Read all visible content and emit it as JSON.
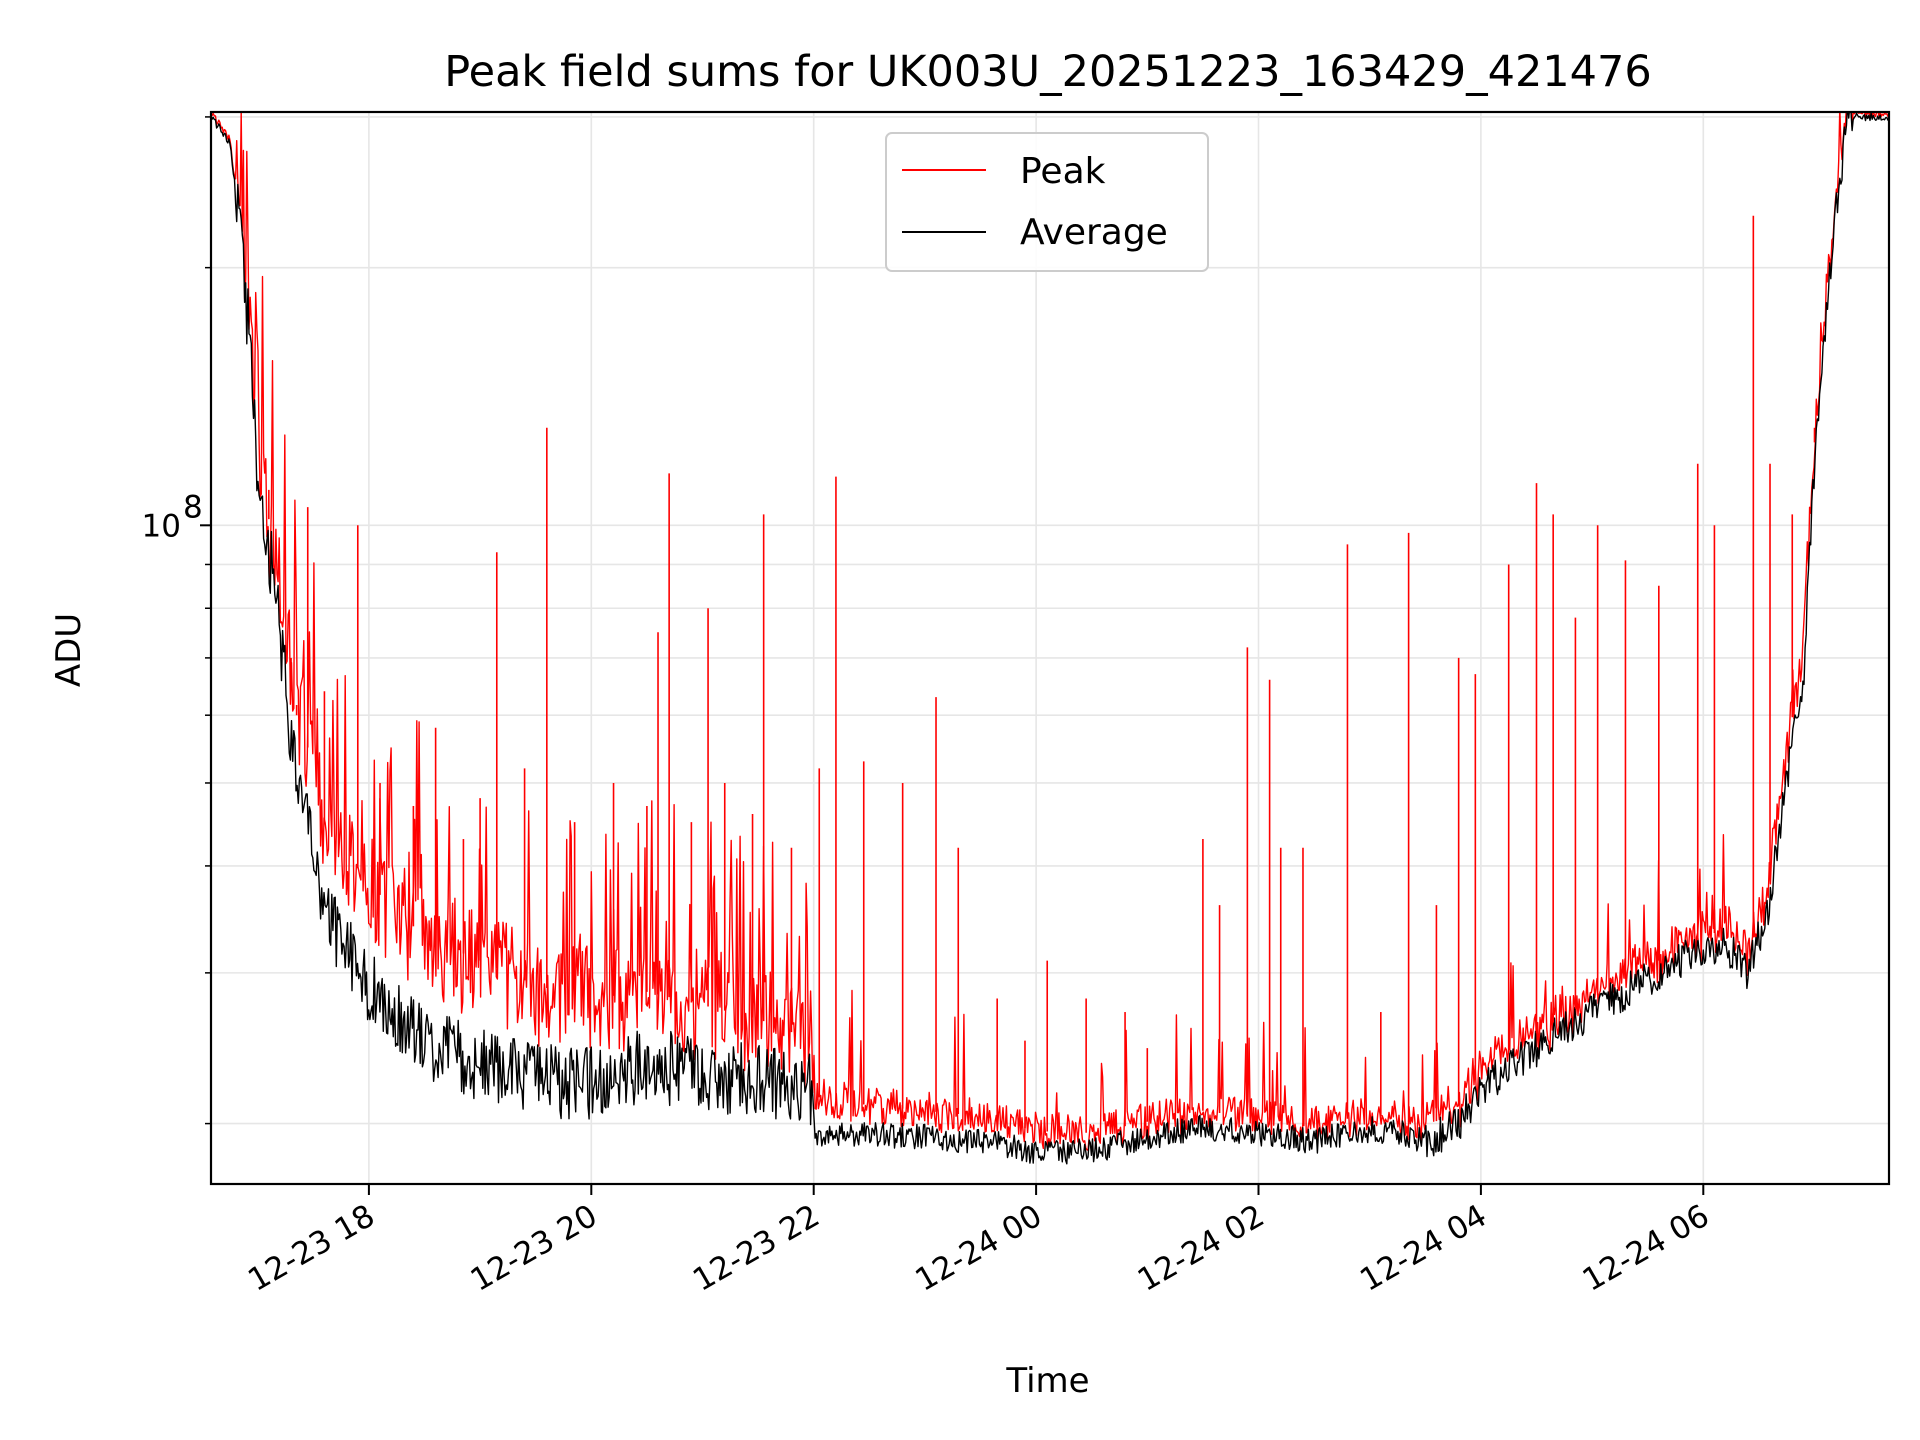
{
  "chart_data": {
    "type": "line",
    "title": "Peak field sums for UK003U_20251223_163429_421476",
    "xlabel": "Time",
    "ylabel": "ADU",
    "yscale": "log",
    "grid": true,
    "legend_position": "upper-center",
    "x_hours": [
      16.58,
      16.75,
      17.0,
      17.3,
      17.6,
      18.0,
      18.5,
      19.0,
      19.5,
      20.0,
      20.5,
      21.0,
      21.5,
      21.99,
      22.01,
      22.5,
      23.0,
      23.5,
      24.0,
      24.5,
      25.0,
      25.5,
      26.0,
      26.5,
      27.0,
      27.3,
      27.5,
      27.8,
      28.0,
      28.5,
      29.0,
      29.5,
      30.0,
      30.2,
      30.4,
      30.6,
      30.9,
      31.1,
      31.3,
      31.5
    ],
    "x_ticks": [
      {
        "hour": 18,
        "label": "12-23 18"
      },
      {
        "hour": 20,
        "label": "12-23 20"
      },
      {
        "hour": 22,
        "label": "12-23 22"
      },
      {
        "hour": 24,
        "label": "12-24 00"
      },
      {
        "hour": 26,
        "label": "12-24 02"
      },
      {
        "hour": 28,
        "label": "12-24 04"
      },
      {
        "hour": 30,
        "label": "12-24 06"
      }
    ],
    "xlim_hours": [
      16.58,
      31.67
    ],
    "ylim": [
      17000000,
      304000000
    ],
    "y_major_ticks": [
      {
        "value": 100000000,
        "base": "10",
        "exp": "8"
      }
    ],
    "y_minor_ticks": [
      20000000,
      30000000,
      40000000,
      50000000,
      60000000,
      70000000,
      80000000,
      90000000,
      200000000,
      300000000
    ],
    "series": [
      {
        "name": "Peak",
        "color": "#ff0000",
        "values": [
          300000000,
          280000000,
          120000000,
          65000000,
          45000000,
          38000000,
          33000000,
          31000000,
          29000000,
          28000000,
          28500000,
          27500000,
          26500000,
          25000000,
          21500000,
          21000000,
          20700000,
          20400000,
          19600000,
          19500000,
          20100000,
          20700000,
          20300000,
          19900000,
          20500000,
          20200000,
          19700000,
          21000000,
          23000000,
          25500000,
          28000000,
          30500000,
          33000000,
          33800000,
          31000000,
          39000000,
          70000000,
          180000000,
          300000000,
          300000000
        ]
      },
      {
        "name": "Average",
        "color": "#000000",
        "values": [
          300000000,
          280000000,
          115000000,
          55000000,
          35000000,
          29000000,
          25000000,
          23500000,
          22500000,
          22500000,
          23500000,
          23000000,
          22500000,
          22000000,
          19500000,
          19400000,
          19300000,
          19100000,
          18500000,
          18600000,
          19300000,
          19800000,
          19500000,
          19100000,
          19700000,
          19500000,
          19000000,
          20000000,
          22000000,
          24500000,
          27000000,
          29500000,
          32000000,
          32500000,
          30000000,
          36000000,
          65000000,
          170000000,
          300000000,
          300000000
        ]
      }
    ],
    "annotations": {
      "peak_spikes": [
        [
          17.1,
          110000000
        ],
        [
          17.3,
          70000000
        ],
        [
          17.35,
          60000000
        ],
        [
          17.45,
          105000000
        ],
        [
          17.6,
          64000000
        ],
        [
          17.9,
          100000000
        ],
        [
          18.1,
          50000000
        ],
        [
          18.4,
          47000000
        ],
        [
          18.6,
          58000000
        ],
        [
          18.85,
          43000000
        ],
        [
          19.0,
          48000000
        ],
        [
          19.15,
          93000000
        ],
        [
          19.4,
          52000000
        ],
        [
          19.6,
          130000000
        ],
        [
          19.85,
          45000000
        ],
        [
          20.2,
          50000000
        ],
        [
          20.5,
          47000000
        ],
        [
          20.6,
          75000000
        ],
        [
          20.7,
          115000000
        ],
        [
          20.9,
          45000000
        ],
        [
          21.05,
          80000000
        ],
        [
          21.2,
          50000000
        ],
        [
          21.45,
          46000000
        ],
        [
          21.55,
          103000000
        ],
        [
          21.8,
          42000000
        ],
        [
          22.05,
          52000000
        ],
        [
          22.2,
          114000000
        ],
        [
          22.45,
          53000000
        ],
        [
          22.8,
          50000000
        ],
        [
          23.1,
          63000000
        ],
        [
          23.3,
          42000000
        ],
        [
          23.65,
          28000000
        ],
        [
          23.9,
          25000000
        ],
        [
          24.1,
          31000000
        ],
        [
          24.45,
          28000000
        ],
        [
          24.8,
          27000000
        ],
        [
          25.0,
          24500000
        ],
        [
          25.5,
          43000000
        ],
        [
          25.65,
          36000000
        ],
        [
          25.9,
          72000000
        ],
        [
          26.1,
          66000000
        ],
        [
          26.2,
          42000000
        ],
        [
          26.4,
          42000000
        ],
        [
          26.8,
          95000000
        ],
        [
          27.1,
          27000000
        ],
        [
          27.35,
          98000000
        ],
        [
          27.6,
          36000000
        ],
        [
          27.8,
          70000000
        ],
        [
          27.95,
          67000000
        ],
        [
          28.25,
          90000000
        ],
        [
          28.5,
          112000000
        ],
        [
          28.65,
          103000000
        ],
        [
          28.85,
          78000000
        ],
        [
          29.05,
          100000000
        ],
        [
          29.3,
          91000000
        ],
        [
          29.6,
          85000000
        ],
        [
          29.95,
          118000000
        ],
        [
          30.1,
          100000000
        ],
        [
          30.45,
          230000000
        ],
        [
          30.6,
          118000000
        ],
        [
          30.8,
          103000000
        ],
        [
          31.0,
          130000000
        ],
        [
          31.25,
          270000000
        ]
      ]
    }
  }
}
